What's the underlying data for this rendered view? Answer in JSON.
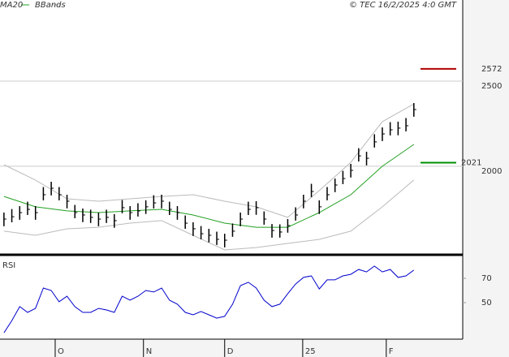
{
  "chart_data": {
    "type": "ohlc",
    "credit": "© TEC 16/2/2025 4:0 GMT",
    "x": [
      0,
      1,
      2,
      3,
      4,
      5,
      6,
      7,
      8,
      9,
      10,
      11,
      12,
      13,
      14,
      15,
      16,
      17,
      18,
      19,
      20,
      21,
      22,
      23,
      24,
      25,
      26,
      27,
      28,
      29,
      30,
      31,
      32,
      33,
      34,
      35,
      36,
      37,
      38,
      39,
      40,
      41,
      42,
      43,
      44,
      45,
      46,
      47,
      48,
      49,
      50,
      51,
      52
    ],
    "high": [
      1728,
      1749,
      1766,
      1792,
      1766,
      1878,
      1909,
      1878,
      1833,
      1773,
      1752,
      1745,
      1728,
      1745,
      1719,
      1802,
      1766,
      1783,
      1800,
      1830,
      1833,
      1792,
      1766,
      1711,
      1671,
      1649,
      1633,
      1616,
      1604,
      1664,
      1728,
      1792,
      1795,
      1735,
      1661,
      1659,
      1690,
      1759,
      1833,
      1897,
      1800,
      1878,
      1928,
      1973,
      2014,
      2106,
      2085,
      2188,
      2228,
      2259,
      2262,
      2283,
      2371
    ],
    "low": [
      1648,
      1671,
      1686,
      1714,
      1686,
      1800,
      1829,
      1800,
      1753,
      1695,
      1672,
      1667,
      1648,
      1667,
      1639,
      1724,
      1686,
      1705,
      1720,
      1752,
      1753,
      1714,
      1686,
      1633,
      1591,
      1571,
      1553,
      1538,
      1524,
      1586,
      1648,
      1714,
      1715,
      1657,
      1581,
      1581,
      1610,
      1681,
      1753,
      1819,
      1720,
      1800,
      1848,
      1895,
      1934,
      2028,
      2005,
      2110,
      2148,
      2181,
      2182,
      2205,
      2291
    ],
    "close": [
      1690,
      1704,
      1728,
      1747,
      1728,
      1833,
      1871,
      1833,
      1795,
      1728,
      1714,
      1700,
      1690,
      1700,
      1681,
      1757,
      1728,
      1738,
      1762,
      1785,
      1795,
      1747,
      1728,
      1666,
      1633,
      1604,
      1595,
      1571,
      1566,
      1619,
      1690,
      1747,
      1757,
      1690,
      1623,
      1614,
      1652,
      1714,
      1795,
      1852,
      1762,
      1833,
      1890,
      1928,
      1976,
      2061,
      2047,
      2143,
      2190,
      2214,
      2224,
      2238,
      2333
    ],
    "bar_color": "#000000",
    "series": [
      {
        "name": "MA20",
        "color": "#22a022",
        "x": [
          0,
          4,
          8,
          12,
          16,
          20,
          24,
          28,
          32,
          36,
          40,
          44,
          48,
          52
        ],
        "values": [
          1823,
          1762,
          1738,
          1728,
          1738,
          1747,
          1714,
          1666,
          1642,
          1642,
          1728,
          1833,
          2000,
          2128
        ]
      },
      {
        "name": "BBands",
        "color": "#bbbbbb",
        "x": [
          0,
          4,
          8,
          12,
          16,
          20,
          24,
          28,
          32,
          36,
          40,
          44,
          48,
          52
        ],
        "values": [
          2009,
          1919,
          1809,
          1795,
          1809,
          1823,
          1833,
          1795,
          1762,
          1700,
          1857,
          2023,
          2262,
          2366
        ],
        "lower": [
          1619,
          1595,
          1633,
          1642,
          1666,
          1681,
          1595,
          1509,
          1523,
          1547,
          1571,
          1619,
          1762,
          1919
        ]
      }
    ],
    "levels": [
      {
        "value": 2572,
        "color": "#b00000"
      },
      {
        "value": 2021,
        "color": "#009000"
      }
    ],
    "xlim": [
      -0.5,
      58.2
    ],
    "xticks": [
      {
        "value": 6.5,
        "label": "O"
      },
      {
        "value": 17.7,
        "label": "N"
      },
      {
        "value": 28,
        "label": "D"
      },
      {
        "value": 37.9,
        "label": "25"
      },
      {
        "value": 48.5,
        "label": "F"
      }
    ],
    "ylim": [
      1490,
      2976
    ],
    "yticks": [
      2000,
      2500
    ],
    "grid": true,
    "rsi": {
      "label": "RSI",
      "color": "#0000cc",
      "values": [
        25.3,
        35.3,
        46.7,
        42,
        45.3,
        62,
        60,
        50.7,
        55.3,
        46.7,
        42,
        42,
        45.3,
        44,
        42,
        55.3,
        52,
        55.3,
        60,
        58.7,
        62,
        52,
        48.7,
        42,
        40,
        42.7,
        40,
        37.3,
        38.7,
        48.7,
        64,
        66.7,
        62,
        52,
        46.7,
        48.7,
        57.3,
        65.3,
        70.7,
        72,
        61.3,
        68.7,
        68.7,
        72,
        73.3,
        77.3,
        75.3,
        80,
        75.3,
        77.3,
        70.7,
        72,
        76.7
      ],
      "ylim": [
        20,
        88
      ],
      "yticks": [
        50,
        70
      ]
    }
  }
}
